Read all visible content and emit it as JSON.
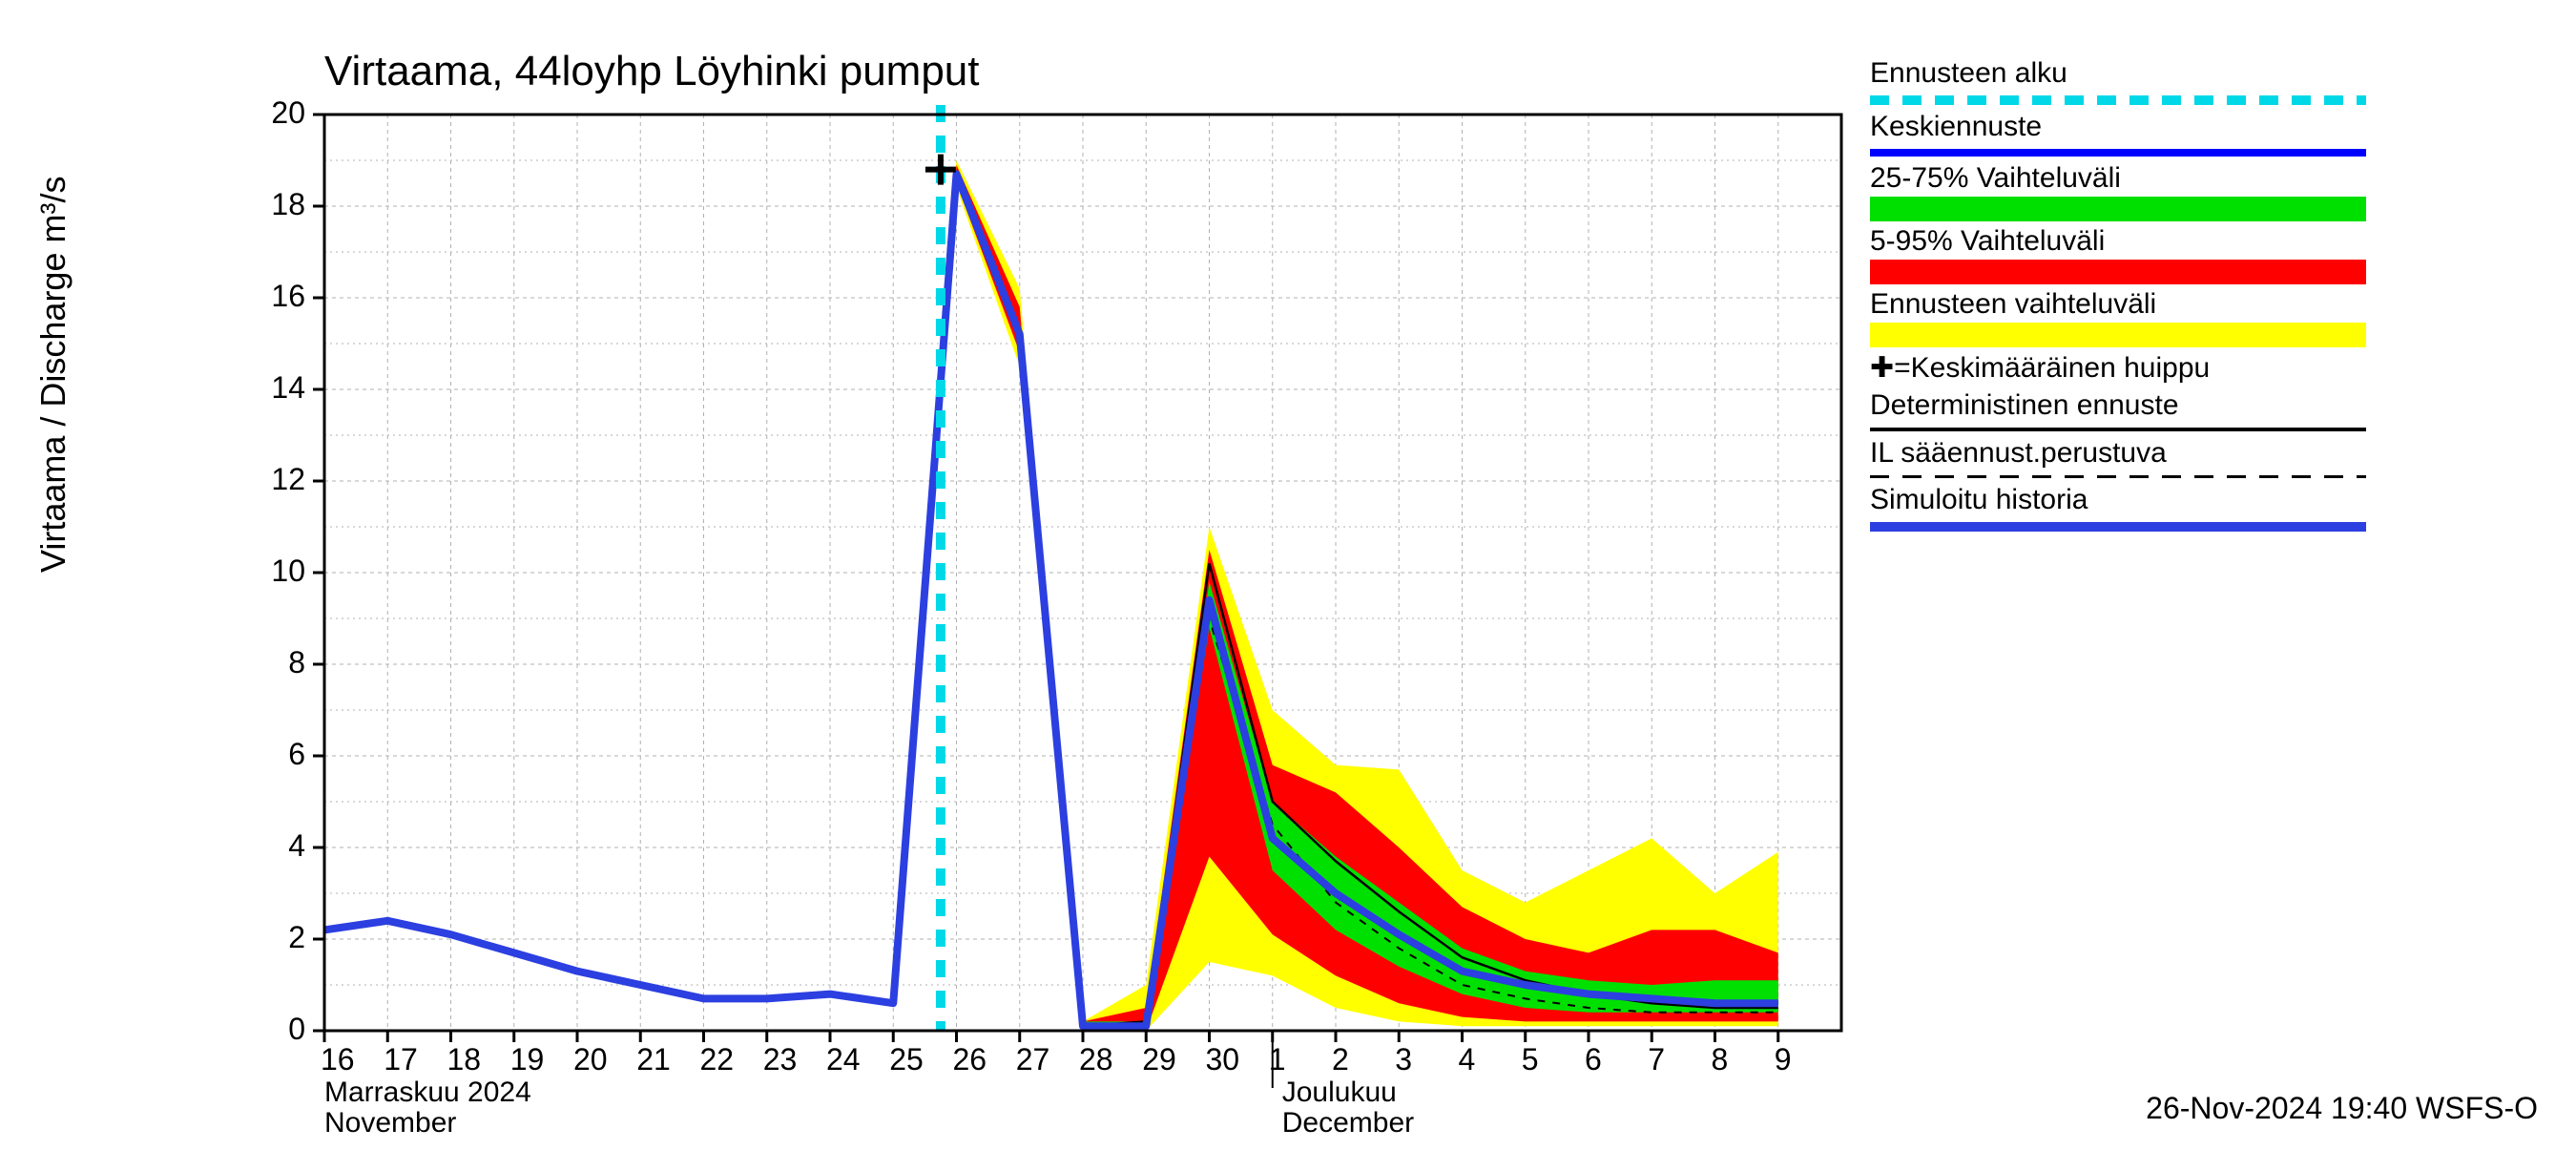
{
  "chart": {
    "title": "Virtaama, 44loyhp Löyhinki pumput",
    "y_label": "Virtaama / Discharge   m³/s",
    "type": "line-band-forecast",
    "background_color": "#ffffff",
    "grid_color": "#b0b0b0",
    "axis_color": "#000000",
    "y_axis": {
      "min": 0,
      "max": 20,
      "ticks": [
        0,
        2,
        4,
        6,
        8,
        10,
        12,
        14,
        16,
        18,
        20
      ],
      "tick_fontsize": 32
    },
    "x_axis": {
      "days": [
        "16",
        "17",
        "18",
        "19",
        "20",
        "21",
        "22",
        "23",
        "24",
        "25",
        "26",
        "27",
        "28",
        "29",
        "30",
        "1",
        "2",
        "3",
        "4",
        "5",
        "6",
        "7",
        "8",
        "9"
      ],
      "month1_fi": "Marraskuu 2024",
      "month1_en": "November",
      "month2_fi": "Joulukuu",
      "month2_en": "December",
      "month2_start_index": 15,
      "tick_fontsize": 30
    },
    "forecast_start_index": 9.75,
    "peak_marker": {
      "x_index": 9.75,
      "y": 18.8
    },
    "series": {
      "simulated_history": {
        "color": "#2c3fe0",
        "width": 8,
        "points_y": [
          2.2,
          2.4,
          2.1,
          1.7,
          1.3,
          1.0,
          0.7,
          0.7,
          0.8,
          0.6,
          18.7,
          15.2,
          0.1,
          0.1,
          9.4,
          4.2,
          3.0,
          2.1,
          1.3,
          1.0,
          0.8,
          0.7,
          0.6,
          0.6
        ]
      },
      "mean_forecast": {
        "color": "#0000ff",
        "width": 3,
        "points_y": [
          null,
          null,
          null,
          null,
          null,
          null,
          null,
          null,
          null,
          0.6,
          18.7,
          15.2,
          0.1,
          0.1,
          9.4,
          4.2,
          3.0,
          2.1,
          1.3,
          1.0,
          0.8,
          0.7,
          0.6,
          0.6
        ]
      },
      "deterministic": {
        "color": "#000000",
        "width": 2.5,
        "points_y": [
          null,
          null,
          null,
          null,
          null,
          null,
          null,
          null,
          null,
          0.6,
          18.7,
          15.3,
          0.1,
          0.2,
          10.2,
          5.0,
          3.7,
          2.6,
          1.6,
          1.1,
          0.8,
          0.6,
          0.5,
          0.5
        ]
      },
      "il_forecast": {
        "color": "#000000",
        "width": 2,
        "dash": "8,8",
        "points_y": [
          null,
          null,
          null,
          null,
          null,
          null,
          null,
          null,
          null,
          0.6,
          18.7,
          15.1,
          0.1,
          0.1,
          9.0,
          4.5,
          2.8,
          1.8,
          1.0,
          0.7,
          0.5,
          0.4,
          0.4,
          0.4
        ]
      }
    },
    "bands": {
      "full_range": {
        "color": "#ffff00",
        "upper": [
          null,
          null,
          null,
          null,
          null,
          null,
          null,
          null,
          null,
          0.6,
          19.0,
          16.2,
          0.2,
          1.0,
          11.0,
          7.0,
          5.8,
          5.7,
          3.5,
          2.8,
          3.5,
          4.2,
          3.0,
          3.9
        ],
        "lower": [
          null,
          null,
          null,
          null,
          null,
          null,
          null,
          null,
          null,
          0.6,
          18.4,
          14.5,
          0.0,
          0.0,
          1.5,
          1.2,
          0.5,
          0.2,
          0.1,
          0.1,
          0.1,
          0.1,
          0.1,
          0.1
        ]
      },
      "p5_95": {
        "color": "#ff0000",
        "upper": [
          null,
          null,
          null,
          null,
          null,
          null,
          null,
          null,
          null,
          0.6,
          18.9,
          15.8,
          0.2,
          0.5,
          10.5,
          5.8,
          5.2,
          4.0,
          2.7,
          2.0,
          1.7,
          2.2,
          2.2,
          1.7
        ],
        "lower": [
          null,
          null,
          null,
          null,
          null,
          null,
          null,
          null,
          null,
          0.6,
          18.5,
          14.8,
          0.0,
          0.0,
          3.8,
          2.1,
          1.2,
          0.6,
          0.3,
          0.2,
          0.2,
          0.2,
          0.2,
          0.2
        ]
      },
      "p25_75": {
        "color": "#00e000",
        "upper": [
          null,
          null,
          null,
          null,
          null,
          null,
          null,
          null,
          null,
          0.6,
          18.8,
          15.4,
          0.2,
          0.2,
          9.8,
          5.0,
          3.8,
          2.8,
          1.8,
          1.3,
          1.1,
          1.0,
          1.1,
          1.1
        ],
        "lower": [
          null,
          null,
          null,
          null,
          null,
          null,
          null,
          null,
          null,
          0.6,
          18.6,
          15.0,
          0.0,
          0.0,
          8.8,
          3.5,
          2.2,
          1.4,
          0.8,
          0.5,
          0.4,
          0.4,
          0.4,
          0.4
        ]
      }
    },
    "colors": {
      "forecast_start": "#00d8e8",
      "mean_forecast": "#0000ff",
      "p25_75": "#00e000",
      "p5_95": "#ff0000",
      "full_range": "#ffff00",
      "peak_marker": "#000000",
      "deterministic": "#000000",
      "il_forecast": "#000000",
      "simulated": "#2c3fe0"
    }
  },
  "legend": {
    "items": [
      {
        "label": "Ennusteen alku",
        "type": "dashed",
        "color": "#00d8e8",
        "thickness": 10
      },
      {
        "label": "Keskiennuste",
        "type": "solid",
        "color": "#0000ff",
        "thickness": 8
      },
      {
        "label": "25-75% Vaihteluväli",
        "type": "fill",
        "color": "#00e000"
      },
      {
        "label": "5-95% Vaihteluväli",
        "type": "fill",
        "color": "#ff0000"
      },
      {
        "label": "Ennusteen vaihteluväli",
        "type": "fill",
        "color": "#ffff00"
      },
      {
        "label": "=Keskimääräinen huippu",
        "prefix": "✚",
        "type": "none"
      },
      {
        "label": "Deterministinen ennuste",
        "type": "solid",
        "color": "#000000",
        "thickness": 4
      },
      {
        "label": "IL sääennust.perustuva",
        "type": "dashed",
        "color": "#000000",
        "thickness": 3
      },
      {
        "label": "Simuloitu historia",
        "type": "solid",
        "color": "#2c3fe0",
        "thickness": 10
      }
    ]
  },
  "footer": "26-Nov-2024 19:40 WSFS-O"
}
